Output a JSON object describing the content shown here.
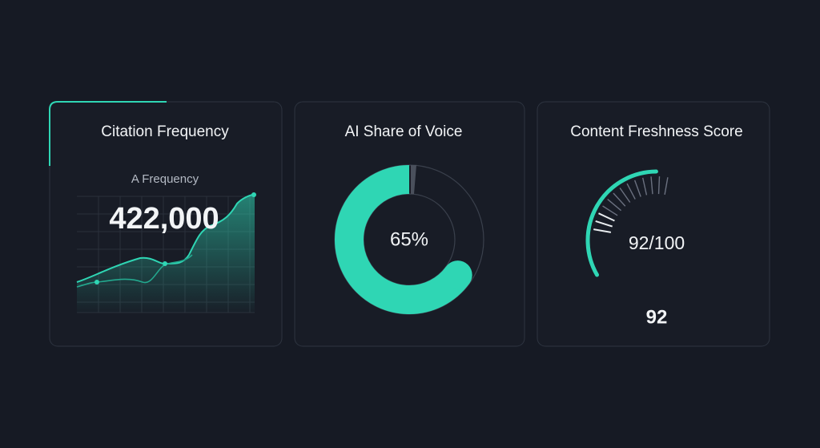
{
  "cards": [
    {
      "title": "Citation Frequency",
      "subtitle": "A Frequency",
      "value": "422,000"
    },
    {
      "title": "AI Share of Voice",
      "share": {
        "value": 65,
        "label": "65%"
      }
    },
    {
      "title": "Content Freshness Score",
      "score": 92,
      "max": 100,
      "score_label": "92/100"
    }
  ]
}
